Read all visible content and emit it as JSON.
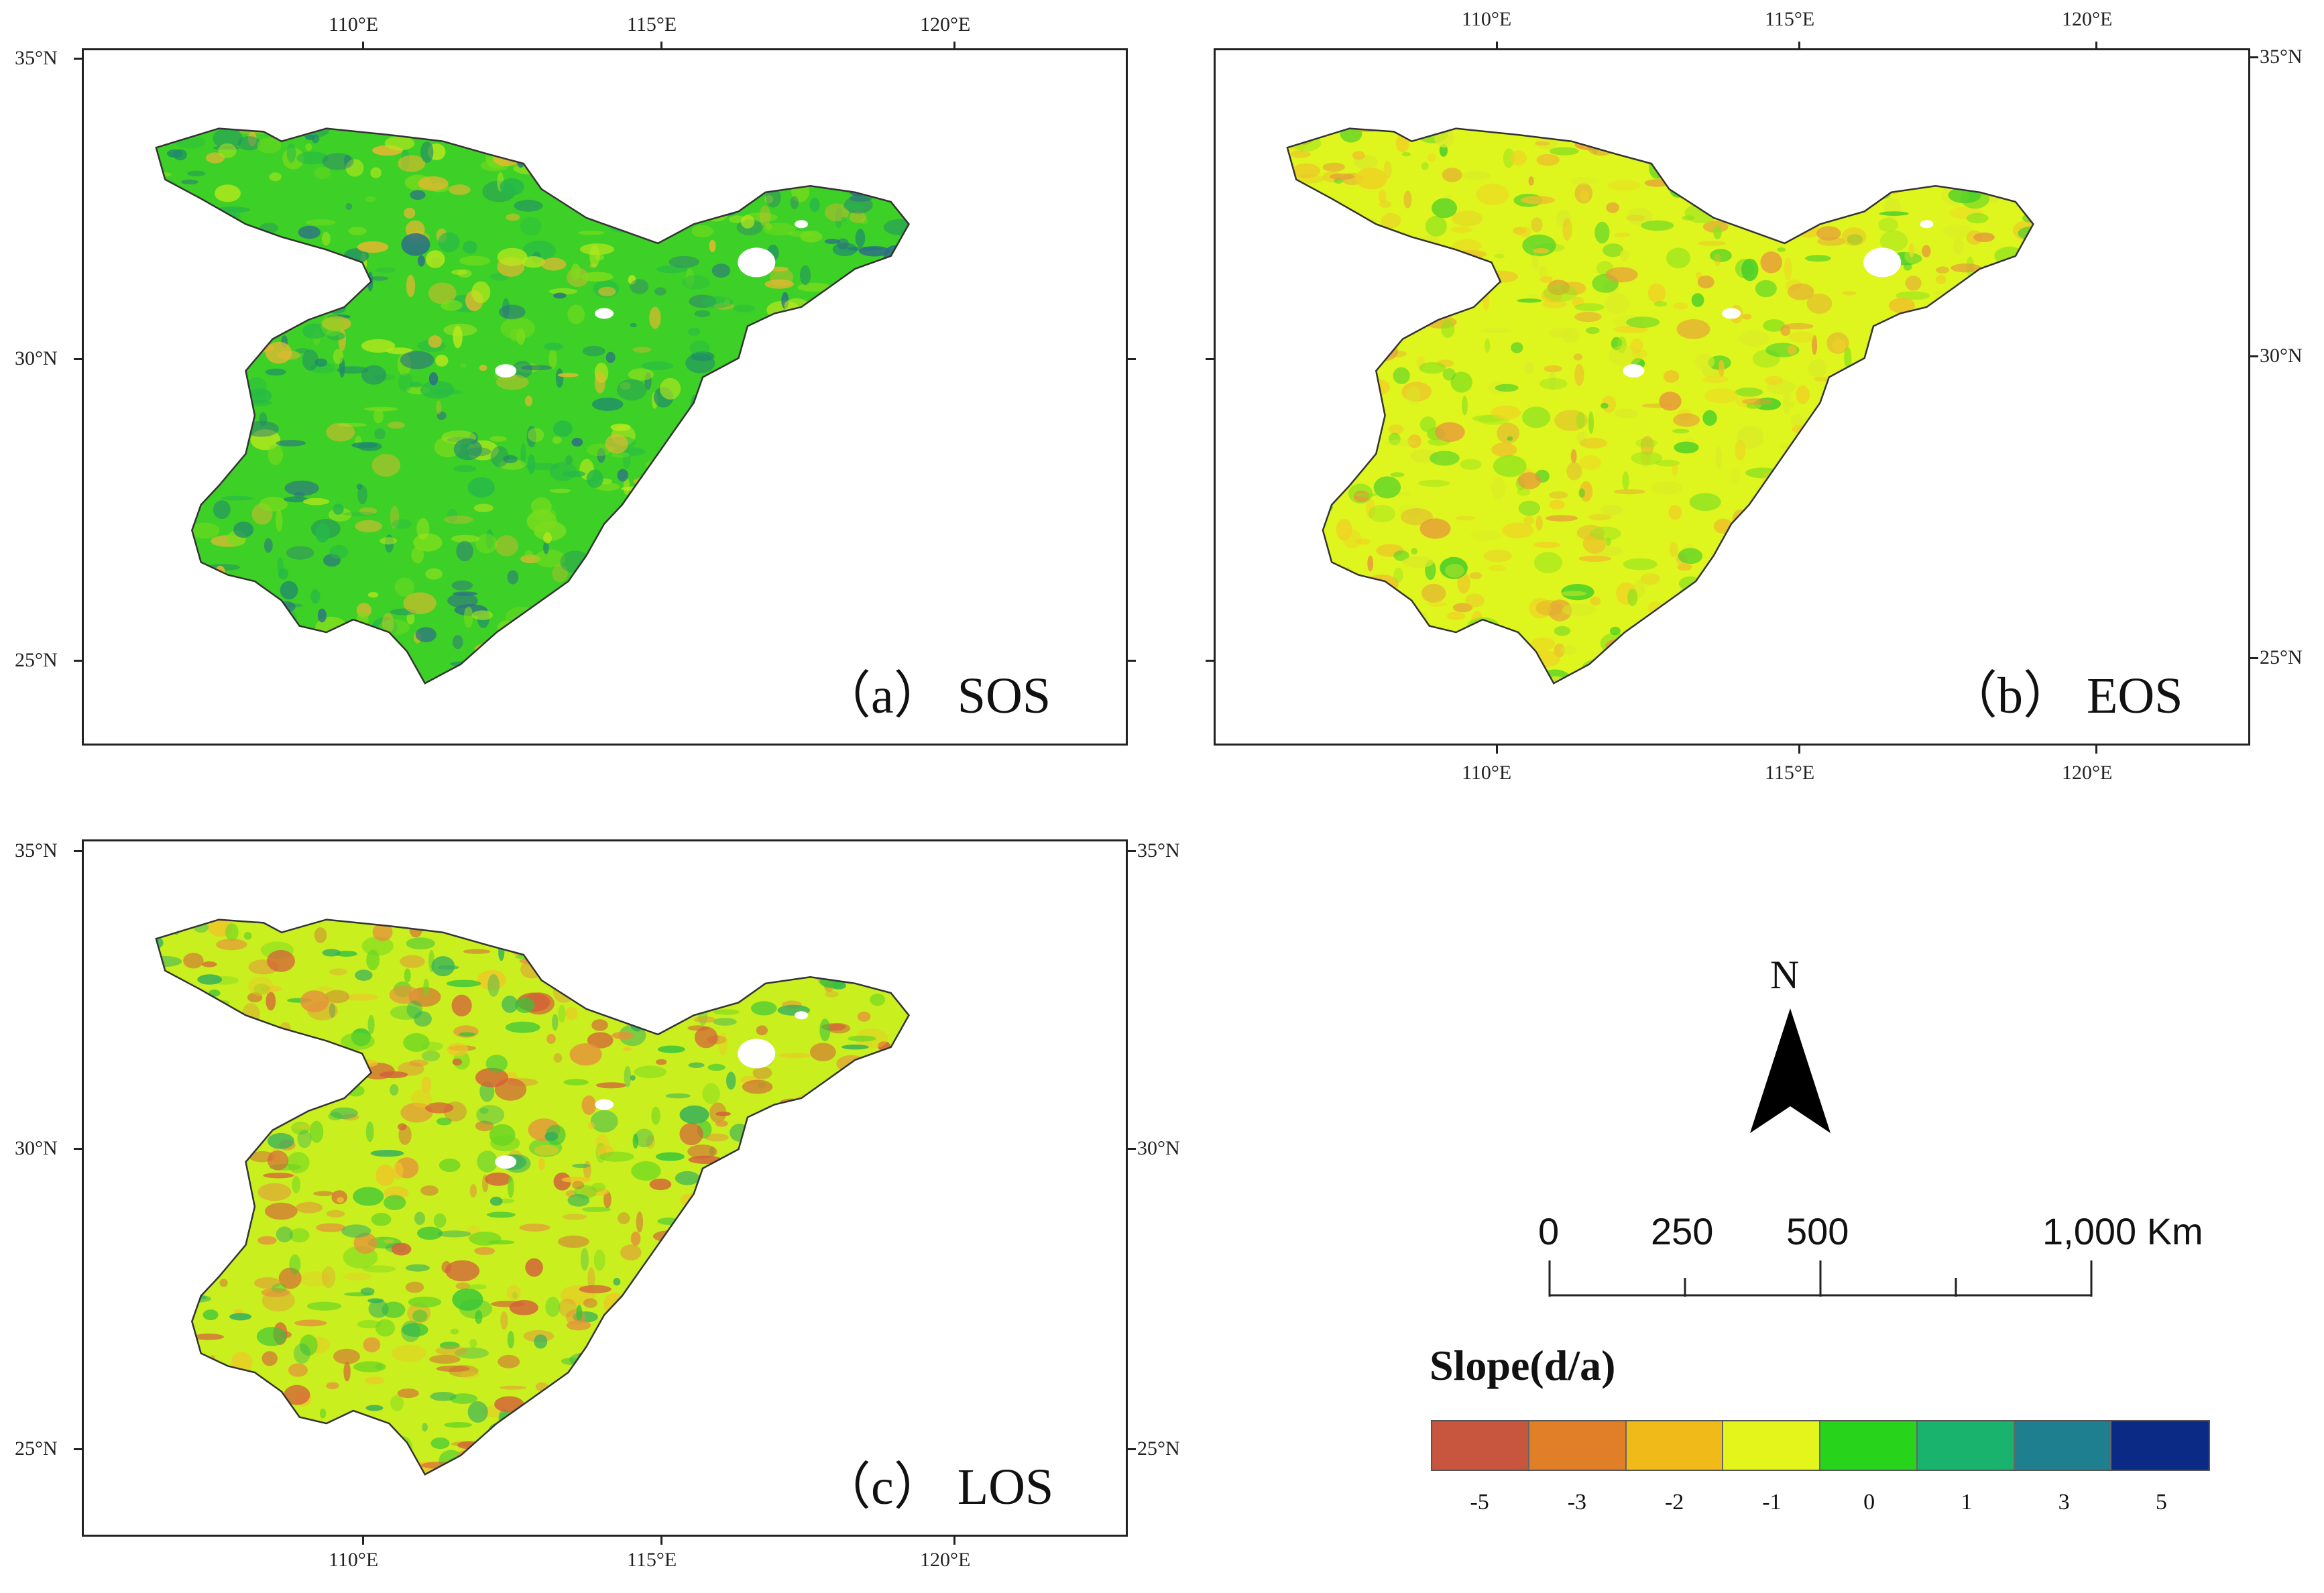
{
  "panels": [
    {
      "label": "（a） SOS",
      "scheme": "sos"
    },
    {
      "label": "（b） EOS",
      "scheme": "eos"
    },
    {
      "label": "（c） LOS",
      "scheme": "los"
    }
  ],
  "lon_labels": [
    "110°E",
    "115°E",
    "120°E"
  ],
  "lat_labels": [
    "35°N",
    "30°N",
    "25°N"
  ],
  "north_arrow": {
    "letter": "N"
  },
  "scale_bar": {
    "labels": [
      "0",
      "250",
      "500",
      "1,000 Km"
    ]
  },
  "legend": {
    "title": "Slope(d/a)",
    "ticks": [
      "-5",
      "-3",
      "-2",
      "-1",
      "0",
      "1",
      "3",
      "5"
    ],
    "colors": [
      "#c8553d",
      "#e07f28",
      "#f0bb18",
      "#e4f51c",
      "#27d41b",
      "#19b36d",
      "#1e7f8f",
      "#0b2a86"
    ]
  },
  "palettes": {
    "sos": {
      "base": "#3dd026",
      "blobs": [
        "#7bdc1c",
        "#b8e81c",
        "#25b84a",
        "#1f8c6a",
        "#e8b830",
        "#2b6f86"
      ]
    },
    "eos": {
      "base": "#dff51e",
      "blobs": [
        "#f0d223",
        "#eec02a",
        "#8fe21e",
        "#3ccd2a",
        "#e79a3a",
        "#d8ea28"
      ]
    },
    "los": {
      "base": "#c9ef1f",
      "blobs": [
        "#f0c427",
        "#e5923a",
        "#6bd622",
        "#35c43a",
        "#d4603a",
        "#2fae5e"
      ]
    }
  }
}
